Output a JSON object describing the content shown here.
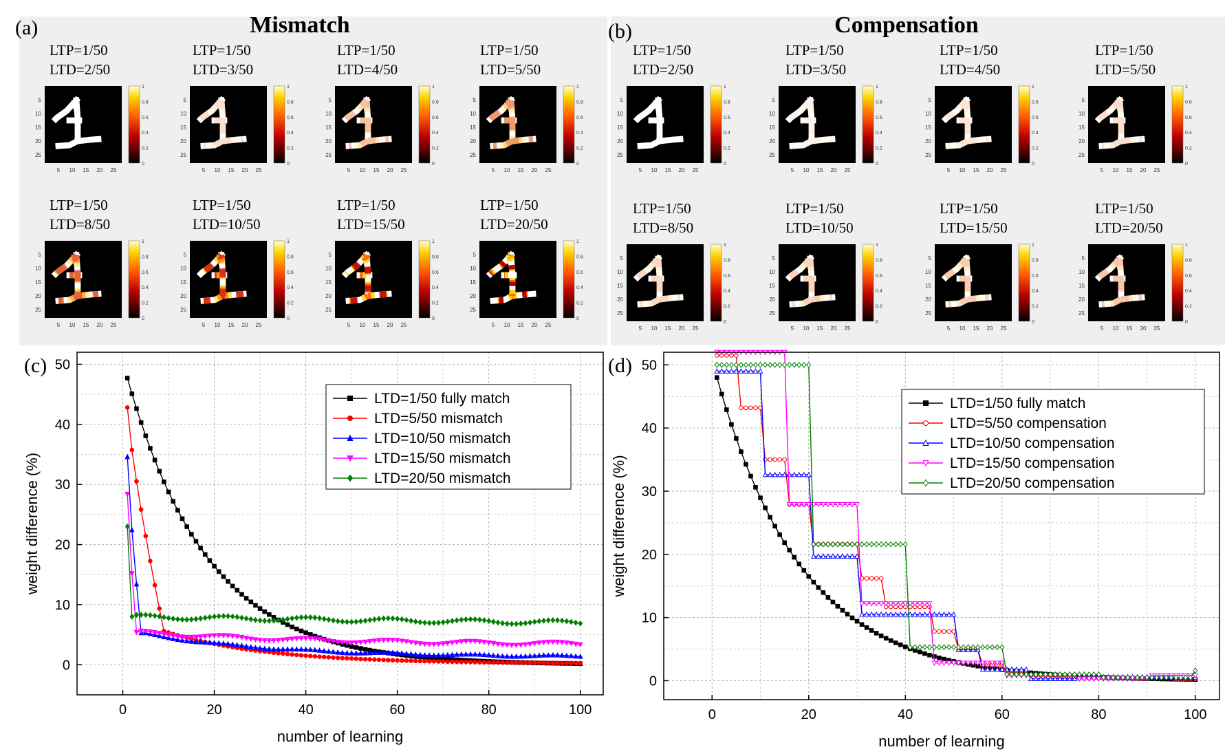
{
  "figure": {
    "panel_a": {
      "label": "(a)",
      "title": "Mismatch",
      "images": [
        {
          "ltp": "LTP=1/50",
          "ltd": "LTD=2/50"
        },
        {
          "ltp": "LTP=1/50",
          "ltd": "LTD=3/50"
        },
        {
          "ltp": "LTP=1/50",
          "ltd": "LTD=4/50"
        },
        {
          "ltp": "LTP=1/50",
          "ltd": "LTD=5/50"
        },
        {
          "ltp": "LTP=1/50",
          "ltd": "LTD=8/50"
        },
        {
          "ltp": "LTP=1/50",
          "ltd": "LTD=10/50"
        },
        {
          "ltp": "LTP=1/50",
          "ltd": "LTD=15/50"
        },
        {
          "ltp": "LTP=1/50",
          "ltd": "LTD=20/50"
        }
      ]
    },
    "panel_b": {
      "label": "(b)",
      "title": "Compensation",
      "images": [
        {
          "ltp": "LTP=1/50",
          "ltd": "LTD=2/50"
        },
        {
          "ltp": "LTP=1/50",
          "ltd": "LTD=3/50"
        },
        {
          "ltp": "LTP=1/50",
          "ltd": "LTD=4/50"
        },
        {
          "ltp": "LTP=1/50",
          "ltd": "LTD=5/50"
        },
        {
          "ltp": "LTP=1/50",
          "ltd": "LTD=8/50"
        },
        {
          "ltp": "LTP=1/50",
          "ltd": "LTD=10/50"
        },
        {
          "ltp": "LTP=1/50",
          "ltd": "LTD=15/50"
        },
        {
          "ltp": "LTP=1/50",
          "ltd": "LTD=20/50"
        }
      ]
    },
    "image_axis_ticks": [
      "5",
      "10",
      "15",
      "20",
      "25"
    ],
    "colorbar_ticks": [
      "0",
      "0.2",
      "0.4",
      "0.6",
      "0.8",
      "1"
    ],
    "panel_c_label": "(c)",
    "panel_d_label": "(d)"
  },
  "chart_data": [
    {
      "type": "line",
      "panel": "(c)",
      "xlabel": "number of learning",
      "ylabel": "weight difference (%)",
      "xlim": [
        -10,
        105
      ],
      "ylim": [
        -5,
        52
      ],
      "xticks": [
        0,
        20,
        40,
        60,
        80,
        100
      ],
      "yticks": [
        0,
        10,
        20,
        30,
        40,
        50
      ],
      "grid": true,
      "legend_position": "top-right",
      "series": [
        {
          "name": "LTD=1/50 fully match",
          "color": "#000000",
          "marker": "square",
          "model": {
            "kind": "exp",
            "y0": 47.7,
            "tau": 17.8,
            "floor": 0,
            "end": 100
          }
        },
        {
          "name": "LTD=5/50 mismatch",
          "color": "#ff0000",
          "marker": "circle",
          "model": {
            "kind": "mismatch",
            "y0": 42.8,
            "knee": 9,
            "kneeVal": 5.6,
            "floor": 0.2,
            "tau": 22,
            "osc": 0,
            "end": 100
          }
        },
        {
          "name": "LTD=10/50 mismatch",
          "color": "#0000ff",
          "marker": "triangle-up",
          "model": {
            "kind": "mismatch",
            "y0": 34.6,
            "knee": 4,
            "kneeVal": 5.3,
            "floor": 1.3,
            "tau": 28,
            "osc": 0.15,
            "end": 100
          }
        },
        {
          "name": "LTD=15/50 mismatch",
          "color": "#ff00ff",
          "marker": "triangle-down",
          "model": {
            "kind": "mismatch",
            "y0": 28.4,
            "knee": 3,
            "kneeVal": 5.4,
            "floor": 3.3,
            "tau": 40,
            "osc": 0.3,
            "end": 100
          }
        },
        {
          "name": "LTD=20/50 mismatch",
          "color": "#008000",
          "marker": "diamond",
          "model": {
            "kind": "mismatch",
            "y0": 23.0,
            "knee": 2,
            "kneeVal": 8.0,
            "floor": 5.5,
            "tau": 200,
            "osc": 0.35,
            "end": 100
          }
        }
      ]
    },
    {
      "type": "line",
      "panel": "(d)",
      "xlabel": "number of learning",
      "ylabel": "weight difference (%)",
      "xlim": [
        -10,
        105
      ],
      "ylim": [
        -3,
        52
      ],
      "xticks": [
        0,
        20,
        40,
        60,
        80,
        100
      ],
      "yticks": [
        0,
        10,
        20,
        30,
        40,
        50
      ],
      "grid": true,
      "legend_position": "top-right",
      "series": [
        {
          "name": "LTD=1/50 fully match",
          "color": "#000000",
          "marker": "square",
          "filled": true,
          "model": {
            "kind": "exp",
            "y0": 48,
            "tau": 17.8,
            "floor": 0,
            "end": 100
          }
        },
        {
          "name": "LTD=5/50 compensation",
          "color": "#ff0000",
          "marker": "circle",
          "filled": false,
          "steps": [
            [
              1,
              51.5
            ],
            [
              6,
              43.2
            ],
            [
              11,
              35.0
            ],
            [
              16,
              27.9
            ],
            [
              21,
              21.6
            ],
            [
              26,
              21.6
            ],
            [
              31,
              16.2
            ],
            [
              36,
              11.7
            ],
            [
              41,
              11.7
            ],
            [
              46,
              7.8
            ],
            [
              51,
              4.9
            ],
            [
              56,
              2.5
            ],
            [
              61,
              1.5
            ],
            [
              66,
              0.8
            ],
            [
              71,
              0.5
            ],
            [
              76,
              0.4
            ],
            [
              81,
              0.5
            ],
            [
              86,
              0.4
            ],
            [
              91,
              0.5
            ],
            [
              96,
              0.3
            ],
            [
              100,
              0.3
            ]
          ]
        },
        {
          "name": "LTD=10/50 compensation",
          "color": "#0000ff",
          "marker": "triangle-up",
          "filled": false,
          "steps": [
            [
              1,
              49.0
            ],
            [
              11,
              32.6
            ],
            [
              21,
              19.7
            ],
            [
              31,
              10.5
            ],
            [
              41,
              10.5
            ],
            [
              46,
              10.5
            ],
            [
              51,
              4.9
            ],
            [
              56,
              1.8
            ],
            [
              61,
              1.8
            ],
            [
              66,
              0.3
            ],
            [
              76,
              0.6
            ],
            [
              86,
              0.6
            ],
            [
              96,
              0.5
            ],
            [
              100,
              0.5
            ]
          ]
        },
        {
          "name": "LTD=15/50 compensation",
          "color": "#ff00ff",
          "marker": "triangle-down",
          "filled": false,
          "steps": [
            [
              1,
              52.0
            ],
            [
              16,
              27.9
            ],
            [
              31,
              12.2
            ],
            [
              46,
              2.8
            ],
            [
              61,
              0.8
            ],
            [
              76,
              0.3
            ],
            [
              91,
              0.8
            ],
            [
              100,
              0.8
            ]
          ]
        },
        {
          "name": "LTD=20/50 compensation",
          "color": "#008000",
          "marker": "diamond",
          "filled": false,
          "steps": [
            [
              1,
              50.0
            ],
            [
              21,
              21.6
            ],
            [
              41,
              5.3
            ],
            [
              61,
              1.0
            ],
            [
              81,
              0.5
            ],
            [
              100,
              1.6
            ]
          ]
        }
      ]
    }
  ]
}
